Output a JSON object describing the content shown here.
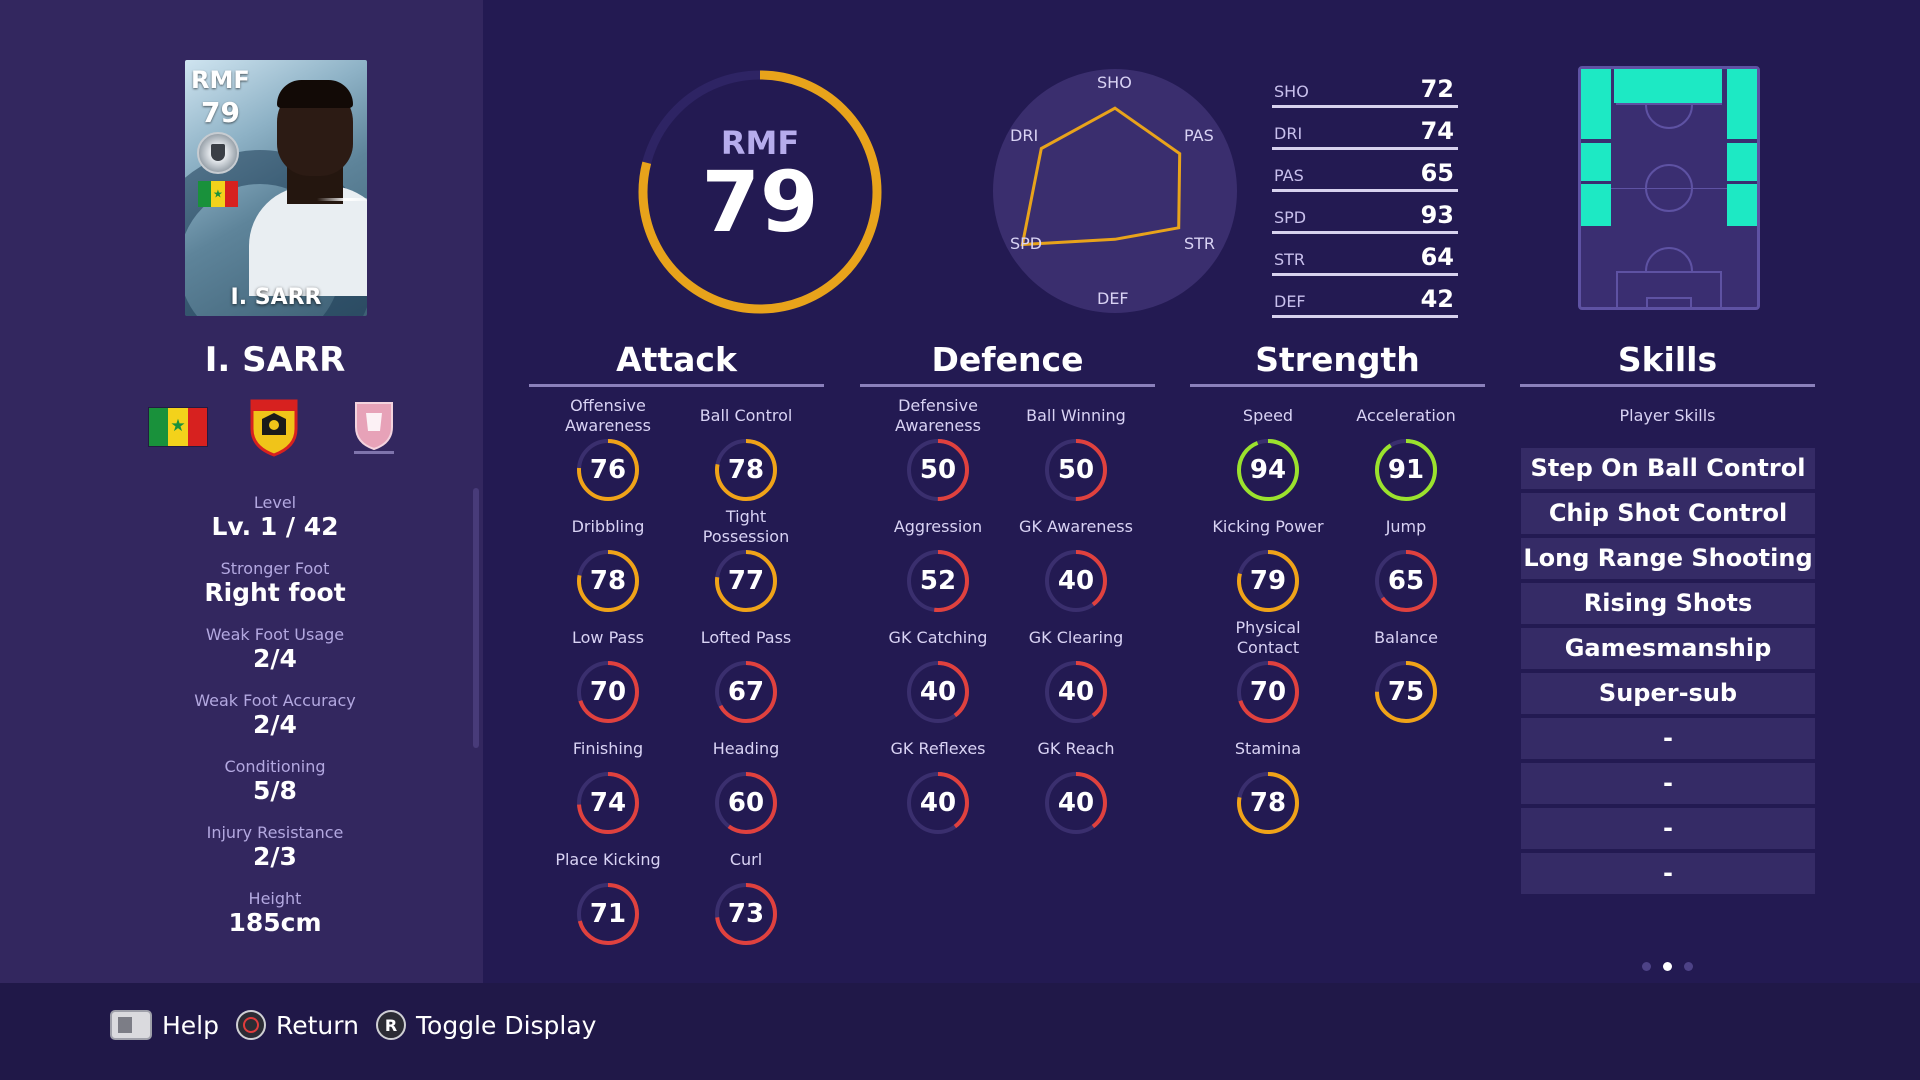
{
  "card": {
    "position": "RMF",
    "rating": "79",
    "name": "I. SARR"
  },
  "player": {
    "name": "I. SARR",
    "nationality_flag": "senegal-flag",
    "club_crest": "club-crest-icon",
    "league_logo": "league-logo-icon"
  },
  "info": [
    {
      "label": "Level",
      "value": "Lv. 1 / 42"
    },
    {
      "label": "Stronger Foot",
      "value": "Right foot"
    },
    {
      "label": "Weak Foot Usage",
      "value": "2/4"
    },
    {
      "label": "Weak Foot Accuracy",
      "value": "2/4"
    },
    {
      "label": "Conditioning",
      "value": "5/8"
    },
    {
      "label": "Injury Resistance",
      "value": "2/3"
    },
    {
      "label": "Height",
      "value": "185cm"
    }
  ],
  "overall": {
    "position": "RMF",
    "rating": "79",
    "rating_fraction": 0.79
  },
  "radar": {
    "labels": [
      "SHO",
      "PAS",
      "STR",
      "DEF",
      "SPD",
      "DRI"
    ],
    "values": [
      72,
      65,
      64,
      42,
      93,
      74
    ]
  },
  "stats": [
    {
      "key": "SHO",
      "value": "72"
    },
    {
      "key": "DRI",
      "value": "74"
    },
    {
      "key": "PAS",
      "value": "65"
    },
    {
      "key": "SPD",
      "value": "93"
    },
    {
      "key": "STR",
      "value": "64"
    },
    {
      "key": "DEF",
      "value": "42"
    }
  ],
  "sections": {
    "attack": {
      "title": "Attack",
      "items": [
        {
          "name": "Offensive\nAwareness",
          "value": 76
        },
        {
          "name": "Ball Control",
          "value": 78
        },
        {
          "name": "Dribbling",
          "value": 78
        },
        {
          "name": "Tight\nPossession",
          "value": 77
        },
        {
          "name": "Low Pass",
          "value": 70
        },
        {
          "name": "Lofted Pass",
          "value": 67
        },
        {
          "name": "Finishing",
          "value": 74
        },
        {
          "name": "Heading",
          "value": 60
        },
        {
          "name": "Place Kicking",
          "value": 71
        },
        {
          "name": "Curl",
          "value": 73
        }
      ]
    },
    "defence": {
      "title": "Defence",
      "items": [
        {
          "name": "Defensive\nAwareness",
          "value": 50
        },
        {
          "name": "Ball Winning",
          "value": 50
        },
        {
          "name": "Aggression",
          "value": 52
        },
        {
          "name": "GK Awareness",
          "value": 40
        },
        {
          "name": "GK Catching",
          "value": 40
        },
        {
          "name": "GK Clearing",
          "value": 40
        },
        {
          "name": "GK Reflexes",
          "value": 40
        },
        {
          "name": "GK Reach",
          "value": 40
        }
      ]
    },
    "strength": {
      "title": "Strength",
      "items": [
        {
          "name": "Speed",
          "value": 94
        },
        {
          "name": "Acceleration",
          "value": 91
        },
        {
          "name": "Kicking Power",
          "value": 79
        },
        {
          "name": "Jump",
          "value": 65
        },
        {
          "name": "Physical\nContact",
          "value": 70
        },
        {
          "name": "Balance",
          "value": 75
        },
        {
          "name": "Stamina",
          "value": 78
        }
      ]
    }
  },
  "skills": {
    "title": "Skills",
    "subtitle": "Player Skills",
    "items": [
      "Step On Ball Control",
      "Chip Shot Control",
      "Long Range Shooting",
      "Rising Shots",
      "Gamesmanship",
      "Super-sub",
      "-",
      "-",
      "-",
      "-"
    ],
    "pages": 3,
    "current_page": 2
  },
  "controls": [
    {
      "icon": "touchpad-icon",
      "label": "Help"
    },
    {
      "icon": "circle-button-icon",
      "label": "Return"
    },
    {
      "icon": "r-button-icon",
      "label": "Toggle Display"
    }
  ],
  "colors": {
    "gauge_green": "#9be22d",
    "gauge_orange": "#f0a318",
    "gauge_red": "#e0413e",
    "gauge_track": "#3a2f6e",
    "pitch_active": "#1de9c4"
  }
}
